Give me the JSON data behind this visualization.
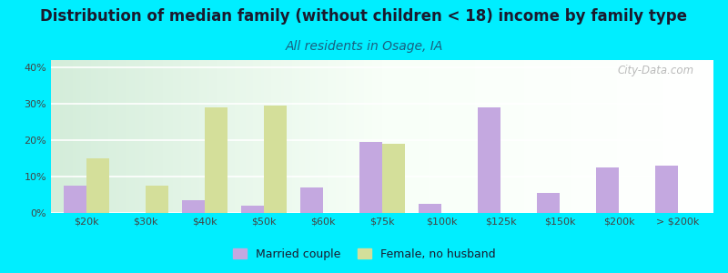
{
  "title": "Distribution of median family (without children < 18) income by family type",
  "subtitle": "All residents in Osage, IA",
  "categories": [
    "$20k",
    "$30k",
    "$40k",
    "$50k",
    "$60k",
    "$75k",
    "$100k",
    "$125k",
    "$150k",
    "$200k",
    "> $200k"
  ],
  "married_couple": [
    7.5,
    0,
    3.5,
    2.0,
    7.0,
    19.5,
    2.5,
    29.0,
    5.5,
    12.5,
    13.0
  ],
  "female_no_husband": [
    15.0,
    7.5,
    29.0,
    29.5,
    0,
    19.0,
    0,
    0,
    0,
    0,
    0
  ],
  "married_color": "#c4a8e0",
  "female_color": "#d4df9a",
  "background_color": "#00eeff",
  "ylim": [
    0,
    42
  ],
  "yticks": [
    0,
    10,
    20,
    30,
    40
  ],
  "ytick_labels": [
    "0%",
    "10%",
    "20%",
    "30%",
    "40%"
  ],
  "title_fontsize": 12,
  "subtitle_fontsize": 10,
  "watermark": "City-Data.com",
  "bar_width": 0.38,
  "title_color": "#1a1a2e",
  "subtitle_color": "#1a6080",
  "tick_color": "#444444"
}
